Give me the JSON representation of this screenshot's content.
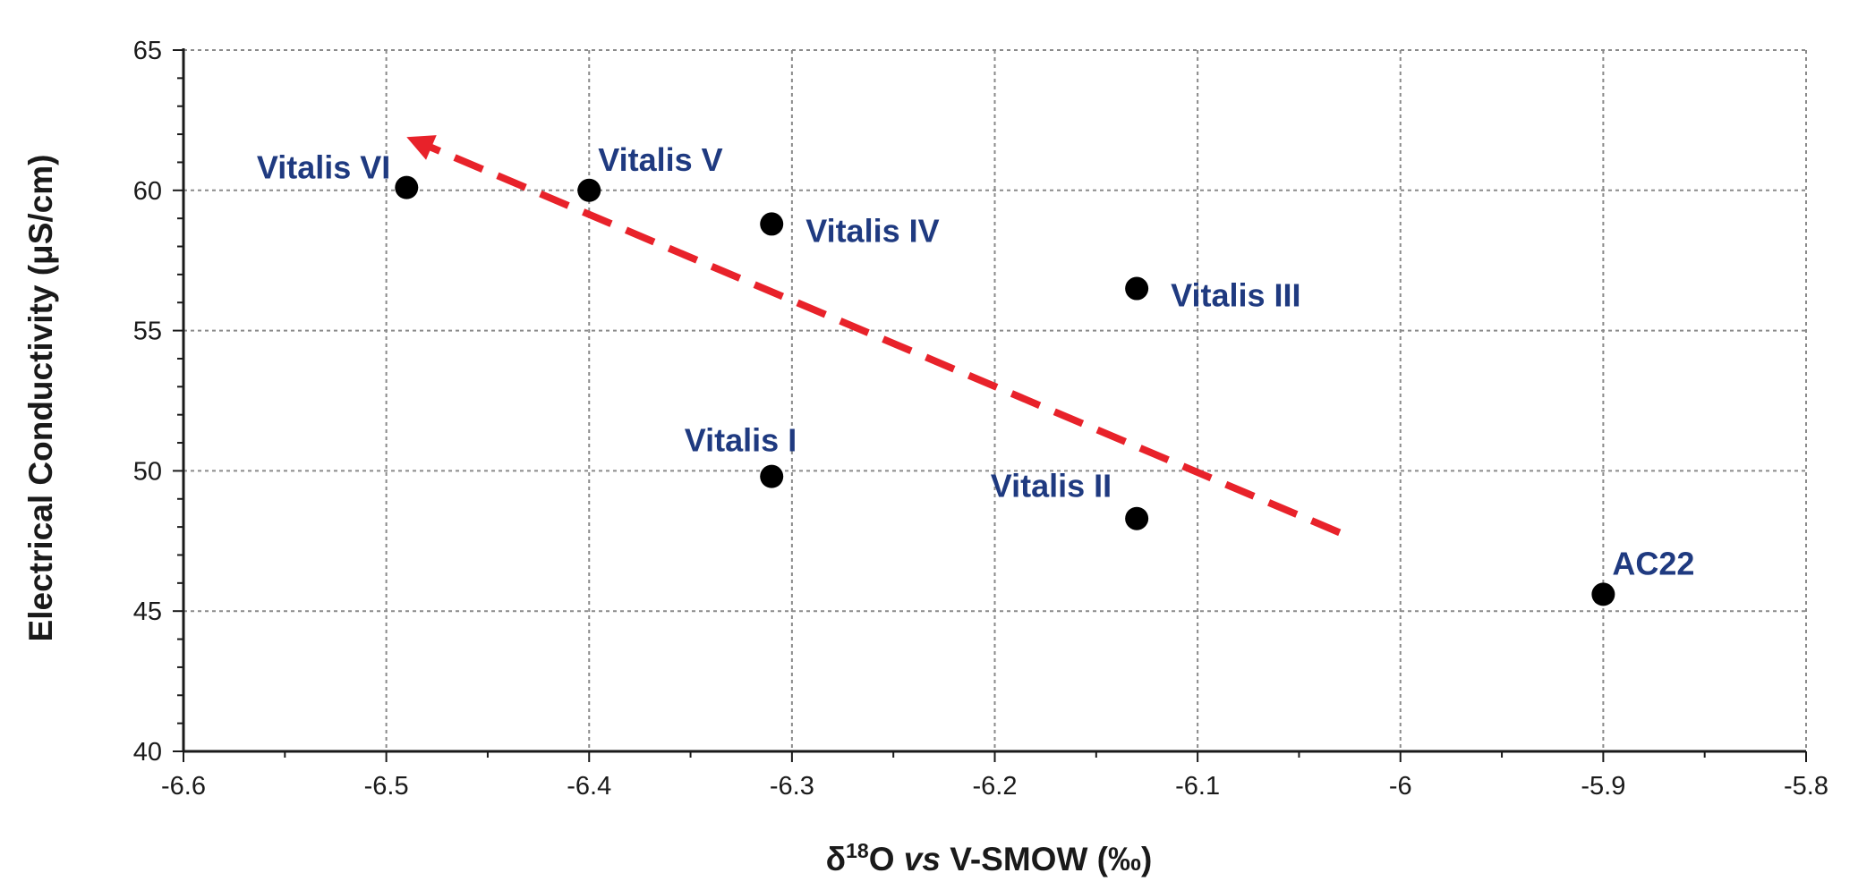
{
  "chart_data": {
    "type": "scatter",
    "title": "",
    "xlabel": "δ¹⁸O vs V-SMOW (‰)",
    "xlabel_parts": {
      "symbol": "δ",
      "superscript": "18",
      "element": "O",
      "italic": "vs",
      "reference": "V-SMOW (‰)"
    },
    "ylabel": "Electrical Conductivity (μS/cm)",
    "xlim": [
      -6.6,
      -5.8
    ],
    "ylim": [
      40,
      65
    ],
    "xticks": [
      -6.6,
      -6.5,
      -6.4,
      -6.3,
      -6.2,
      -6.1,
      -6.0,
      -5.9,
      -5.8
    ],
    "xtick_labels": [
      "-6.6",
      "-6.5",
      "-6.4",
      "-6.3",
      "-6.2",
      "-6.1",
      "-6",
      "-5.9",
      "-5.8"
    ],
    "yticks": [
      40,
      45,
      50,
      55,
      60,
      65
    ],
    "ytick_labels": [
      "40",
      "45",
      "50",
      "55",
      "60",
      "65"
    ],
    "grid": true,
    "points": [
      {
        "label": "Vitalis VI",
        "x": -6.49,
        "y": 60.1,
        "label_side": "left"
      },
      {
        "label": "Vitalis V",
        "x": -6.4,
        "y": 60.0,
        "label_side": "above-right"
      },
      {
        "label": "Vitalis IV",
        "x": -6.31,
        "y": 58.8,
        "label_side": "right"
      },
      {
        "label": "Vitalis III",
        "x": -6.13,
        "y": 56.5,
        "label_side": "right"
      },
      {
        "label": "Vitalis I",
        "x": -6.31,
        "y": 49.8,
        "label_side": "above"
      },
      {
        "label": "Vitalis II",
        "x": -6.13,
        "y": 48.3,
        "label_side": "above-left"
      },
      {
        "label": "AC22",
        "x": -5.9,
        "y": 45.6,
        "label_side": "above-right"
      }
    ],
    "trend_arrow": {
      "style": "dashed",
      "from": {
        "x": -6.03,
        "y": 47.8
      },
      "to": {
        "x": -6.49,
        "y": 61.9
      }
    },
    "colors": {
      "point": "#000000",
      "label": "#1f3a80",
      "arrow": "#e8222a",
      "grid": "#8a8a8a",
      "axis": "#1a1a1a"
    }
  }
}
